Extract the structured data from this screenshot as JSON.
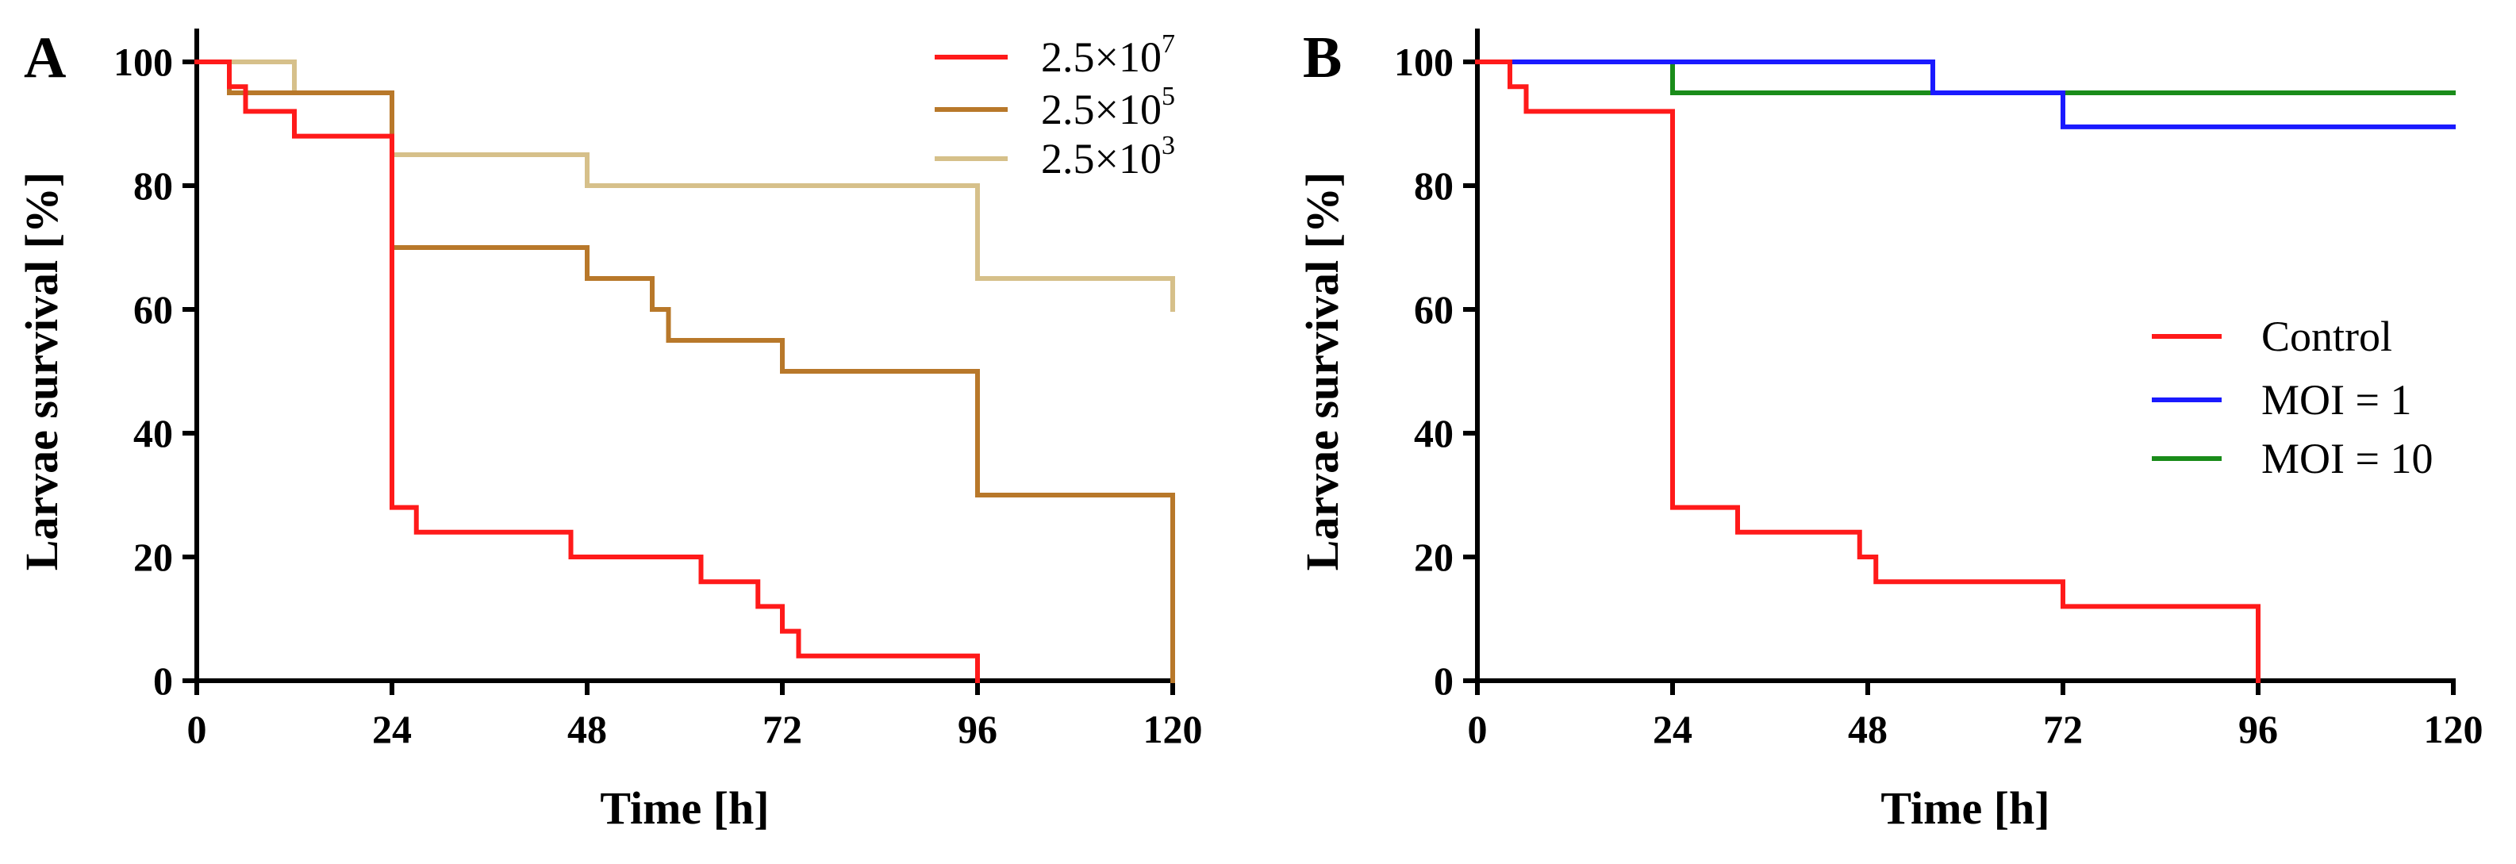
{
  "chart_data": [
    {
      "panel": "A",
      "type": "line",
      "step": true,
      "xlabel": "Time [h]",
      "ylabel": "Larvae survival [%]",
      "xlim": [
        0,
        120
      ],
      "ylim": [
        0,
        100
      ],
      "xticks": [
        0,
        24,
        48,
        72,
        96,
        120
      ],
      "yticks": [
        0,
        20,
        40,
        60,
        80,
        100
      ],
      "grid": false,
      "legend_position": "top-right",
      "series": [
        {
          "name": "2.5×10",
          "name_exp": "7",
          "color": "#ff1a1a",
          "x": [
            0,
            4,
            5,
            6,
            12,
            24,
            27,
            46,
            62,
            69,
            72,
            73,
            74,
            96
          ],
          "y": [
            100,
            96,
            96,
            92,
            88,
            28,
            24,
            20,
            16,
            12,
            8,
            8,
            4,
            0
          ]
        },
        {
          "name": "2.5×10",
          "name_exp": "5",
          "color": "#b8782a",
          "x": [
            0,
            4,
            24,
            48,
            56,
            57,
            58,
            72,
            96,
            120
          ],
          "y": [
            100,
            95,
            70,
            65,
            60,
            60,
            55,
            50,
            30,
            0
          ]
        },
        {
          "name": "2.5×10",
          "name_exp": "3",
          "color": "#d6c08a",
          "x": [
            0,
            12,
            24,
            48,
            96,
            120
          ],
          "y": [
            100,
            95,
            85,
            80,
            65,
            60
          ]
        }
      ]
    },
    {
      "panel": "B",
      "type": "line",
      "step": true,
      "xlabel": "Time [h]",
      "ylabel": "Larvae survival [%]",
      "xlim": [
        0,
        120
      ],
      "ylim": [
        0,
        100
      ],
      "xticks": [
        0,
        24,
        48,
        72,
        96,
        120
      ],
      "yticks": [
        0,
        20,
        40,
        60,
        80,
        100
      ],
      "grid": false,
      "legend_position": "center-right",
      "series": [
        {
          "name": "Control",
          "color": "#ff1a1a",
          "x": [
            0,
            4,
            6,
            24,
            32,
            47,
            49,
            72,
            96
          ],
          "y": [
            100,
            96,
            92,
            28,
            24,
            20,
            16,
            12,
            0
          ]
        },
        {
          "name": "MOI = 1",
          "color": "#1a1aff",
          "x": [
            0,
            56,
            72,
            120
          ],
          "y": [
            100,
            95,
            89.5,
            89.5
          ]
        },
        {
          "name": "MOI = 10",
          "color": "#1a8c1a",
          "x": [
            0,
            24,
            120
          ],
          "y": [
            100,
            95,
            95
          ]
        }
      ]
    }
  ]
}
